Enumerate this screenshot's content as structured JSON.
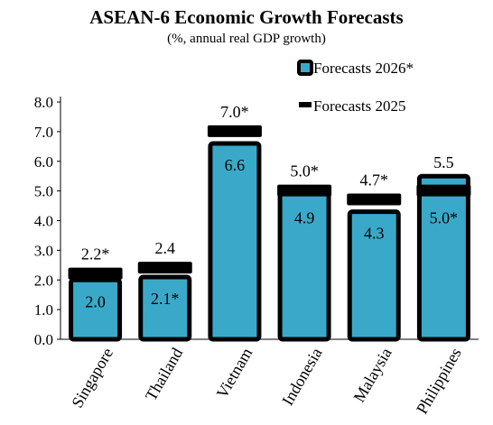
{
  "chart_data": {
    "type": "bar",
    "title": "ASEAN-6 Economic Growth Forecasts",
    "subtitle": "(%, annual real GDP growth)",
    "categories": [
      "Singapore",
      "Thailand",
      "Vietnam",
      "Indonesia",
      "Malaysia",
      "Philippines"
    ],
    "series": [
      {
        "name": "Forecasts 2026*",
        "style": "bar",
        "color": "#3aa9c9",
        "values": [
          2.0,
          2.1,
          6.6,
          4.9,
          4.3,
          5.5
        ],
        "labels": [
          "2.0",
          "2.1*",
          "6.6",
          "4.9",
          "4.3",
          "5.5"
        ],
        "label_position": [
          "inside",
          "inside",
          "inside",
          "inside",
          "inside",
          "top"
        ]
      },
      {
        "name": "Forecasts 2025",
        "style": "marker",
        "color": "#000000",
        "values": [
          2.2,
          2.4,
          7.0,
          5.0,
          4.7,
          5.0
        ],
        "labels": [
          "2.2*",
          "2.4",
          "7.0*",
          "5.0*",
          "4.7*",
          "5.0*"
        ],
        "label_position": [
          "top",
          "top",
          "top",
          "top",
          "top",
          "inside"
        ]
      }
    ],
    "ylim": [
      0,
      8
    ],
    "yticks": [
      "0.0",
      "1.0",
      "2.0",
      "3.0",
      "4.0",
      "5.0",
      "6.0",
      "7.0",
      "8.0"
    ],
    "xlabel": "",
    "ylabel": "",
    "grid": false,
    "legend_position": "top-right"
  }
}
